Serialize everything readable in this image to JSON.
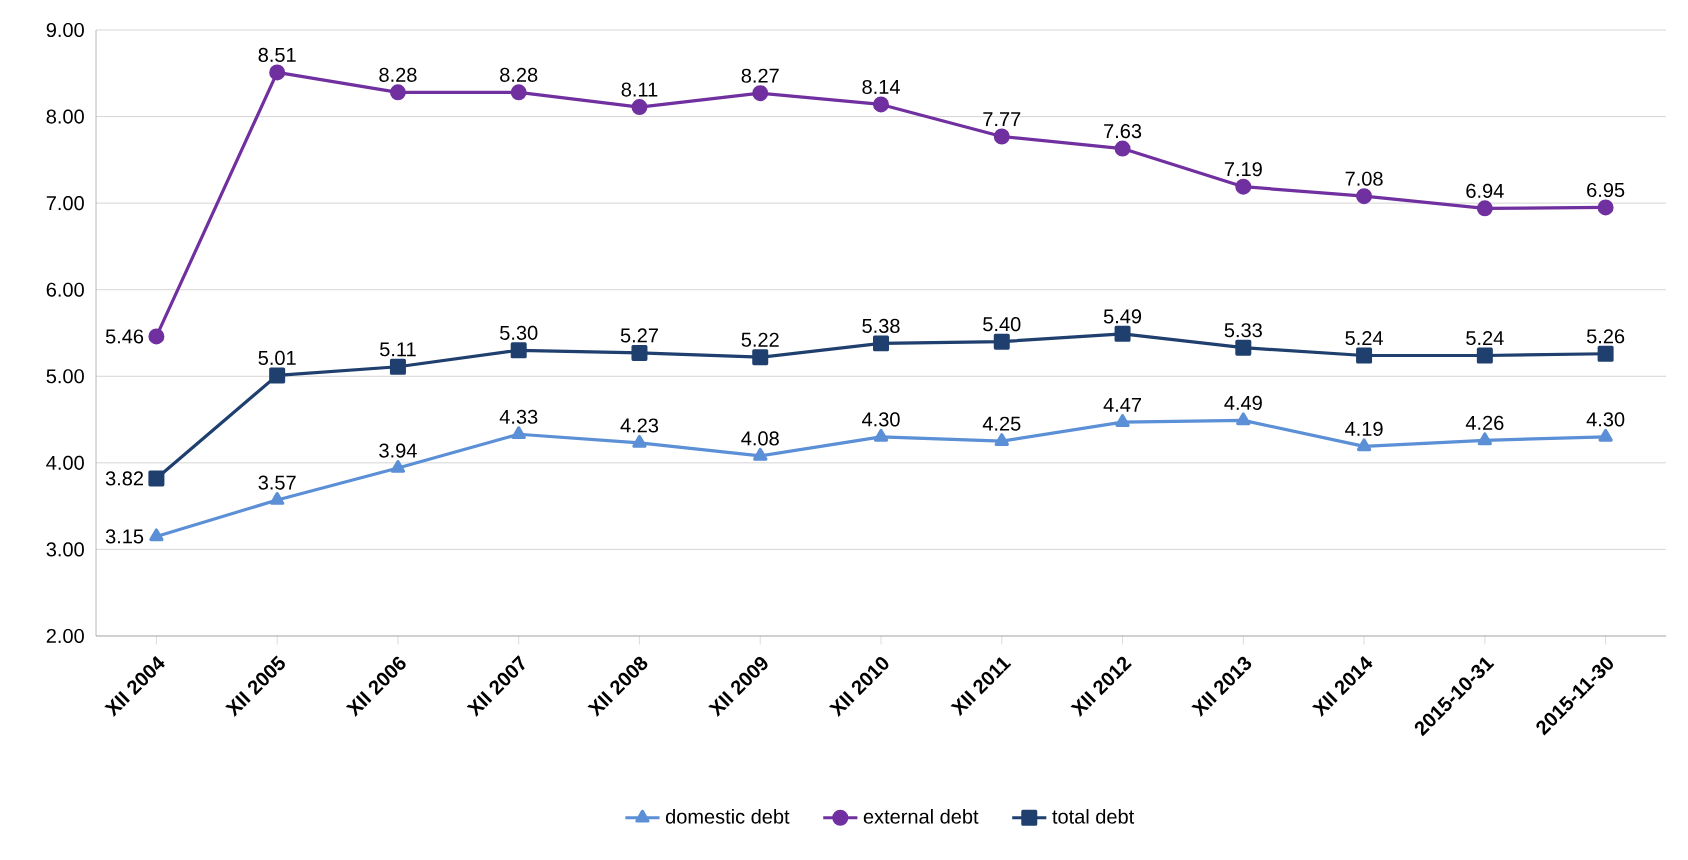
{
  "chart_data": {
    "type": "line",
    "categories": [
      "XII 2004",
      "XII 2005",
      "XII 2006",
      "XII 2007",
      "XII 2008",
      "XII 2009",
      "XII 2010",
      "XII 2011",
      "XII 2012",
      "XII 2013",
      "XII 2014",
      "2015-10-31",
      "2015-11-30"
    ],
    "series": [
      {
        "name": "domestic debt",
        "color": "#5b8fd6",
        "marker": "triangle",
        "values": [
          3.15,
          3.57,
          3.94,
          4.33,
          4.23,
          4.08,
          4.3,
          4.25,
          4.47,
          4.49,
          4.19,
          4.26,
          4.3
        ],
        "value_labels": [
          "3.15",
          "3.57",
          "3.94",
          "4.33",
          "4.23",
          "4.08",
          "4.30",
          "4.25",
          "4.47",
          "4.49",
          "4.19",
          "4.26",
          "4.30"
        ]
      },
      {
        "name": "external debt",
        "color": "#7030a0",
        "marker": "circle",
        "values": [
          5.46,
          8.51,
          8.28,
          8.28,
          8.11,
          8.27,
          8.14,
          7.77,
          7.63,
          7.19,
          7.08,
          6.94,
          6.95
        ],
        "value_labels": [
          "5.46",
          "8.51",
          "8.28",
          "8.28",
          "8.11",
          "8.27",
          "8.14",
          "7.77",
          "7.63",
          "7.19",
          "7.08",
          "6.94",
          "6.95"
        ]
      },
      {
        "name": "total debt",
        "color": "#1f3f6e",
        "marker": "square",
        "values": [
          3.82,
          5.01,
          5.11,
          5.3,
          5.27,
          5.22,
          5.38,
          5.4,
          5.49,
          5.33,
          5.24,
          5.24,
          5.26
        ],
        "value_labels": [
          "3.82",
          "5.01",
          "5.11",
          "5.30",
          "5.27",
          "5.22",
          "5.38",
          "5.40",
          "5.49",
          "5.33",
          "5.24",
          "5.24",
          "5.26"
        ]
      }
    ],
    "ylim": [
      2,
      9
    ],
    "yticks": [
      {
        "value": 2,
        "label": "2.00"
      },
      {
        "value": 3,
        "label": "3.00"
      },
      {
        "value": 4,
        "label": "4.00"
      },
      {
        "value": 5,
        "label": "5.00"
      },
      {
        "value": 6,
        "label": "6.00"
      },
      {
        "value": 7,
        "label": "7.00"
      },
      {
        "value": 8,
        "label": "8.00"
      },
      {
        "value": 9,
        "label": "9.00"
      }
    ],
    "grid": "y",
    "legend": "bottom",
    "line_style": "solid"
  }
}
